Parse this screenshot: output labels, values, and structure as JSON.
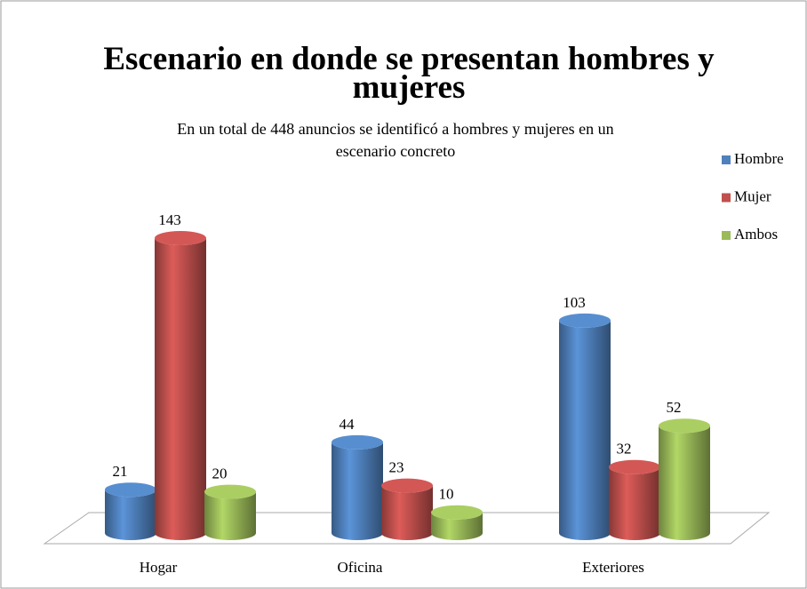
{
  "chart_data": {
    "type": "bar3d",
    "title": "Escenario en donde se presentan hombres y mujeres",
    "subtitle": "En un total de 448 anuncios se identificó a hombres y mujeres en un escenario concreto",
    "categories": [
      "Hogar",
      "Oficina",
      "Exteriores"
    ],
    "series": [
      {
        "name": "Hombre",
        "color": "#4f81bd",
        "values": [
          21,
          44,
          103
        ]
      },
      {
        "name": "Mujer",
        "color": "#c0504d",
        "values": [
          143,
          23,
          32
        ]
      },
      {
        "name": "Ambos",
        "color": "#9bbb59",
        "values": [
          20,
          10,
          52
        ]
      }
    ],
    "legend": "right"
  }
}
